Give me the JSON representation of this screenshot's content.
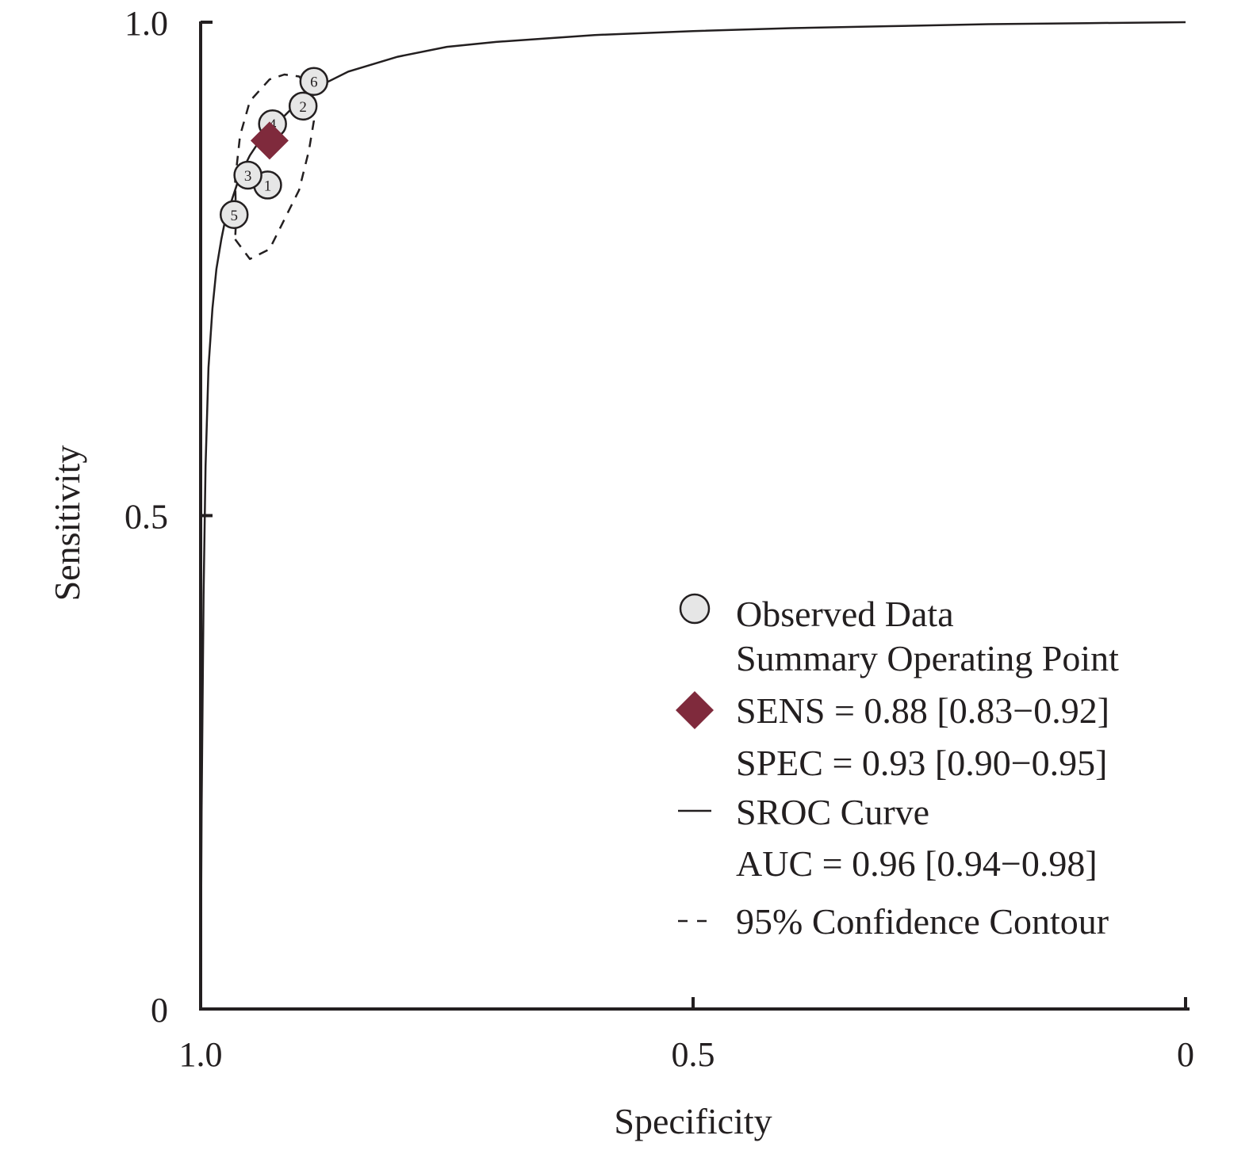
{
  "chart_data": {
    "type": "scatter",
    "xlabel": "Specificity",
    "ylabel": "Sensitivity",
    "xlim": [
      1.0,
      0
    ],
    "ylim": [
      0,
      1.0
    ],
    "x_ticks": [
      "1.0",
      "0.5",
      "0"
    ],
    "y_ticks": [
      "0",
      "0.5",
      "1.0"
    ],
    "grid": false,
    "legend_position": "bottom-right",
    "observed_data": [
      {
        "study": "1",
        "specificity": 0.932,
        "sensitivity": 0.835
      },
      {
        "study": "2",
        "specificity": 0.896,
        "sensitivity": 0.915
      },
      {
        "study": "3",
        "specificity": 0.952,
        "sensitivity": 0.845
      },
      {
        "study": "4",
        "specificity": 0.927,
        "sensitivity": 0.897
      },
      {
        "study": "5",
        "specificity": 0.966,
        "sensitivity": 0.805
      },
      {
        "study": "6",
        "specificity": 0.885,
        "sensitivity": 0.94
      }
    ],
    "summary_point": {
      "specificity": 0.93,
      "sensitivity": 0.88
    },
    "sroc_curve": {
      "specificity": [
        1.0,
        0.999,
        0.997,
        0.995,
        0.992,
        0.988,
        0.984,
        0.979,
        0.975,
        0.97,
        0.965,
        0.96,
        0.955,
        0.95,
        0.94,
        0.93,
        0.92,
        0.91,
        0.9,
        0.88,
        0.85,
        0.8,
        0.75,
        0.7,
        0.6,
        0.5,
        0.4,
        0.3,
        0.2,
        0.1,
        0.0
      ],
      "sensitivity": [
        0.0,
        0.2,
        0.42,
        0.55,
        0.65,
        0.71,
        0.75,
        0.78,
        0.8,
        0.815,
        0.83,
        0.845,
        0.855,
        0.865,
        0.88,
        0.89,
        0.9,
        0.91,
        0.92,
        0.935,
        0.95,
        0.965,
        0.975,
        0.98,
        0.987,
        0.991,
        0.994,
        0.996,
        0.998,
        0.999,
        1.0
      ]
    },
    "confidence_contour": {
      "specificity": [
        0.965,
        0.95,
        0.93,
        0.9,
        0.89,
        0.885,
        0.887,
        0.9,
        0.915,
        0.93,
        0.95,
        0.96,
        0.965,
        0.964
      ],
      "sensitivity": [
        0.78,
        0.76,
        0.77,
        0.83,
        0.87,
        0.9,
        0.93,
        0.945,
        0.947,
        0.942,
        0.92,
        0.885,
        0.84,
        0.8
      ]
    }
  },
  "legend": {
    "observed_label": "Observed Data",
    "summary_label": "Summary Operating Point",
    "sens_text": "SENS = 0.88 [0.83−0.92]",
    "spec_text": "SPEC = 0.93 [0.90−0.95]",
    "sroc_label": "SROC Curve",
    "auc_text": "AUC = 0.96 [0.94−0.98]",
    "contour_label": "95% Confidence Contour"
  },
  "colors": {
    "axis": "#231f20",
    "point_fill": "#e6e6e6",
    "summary_fill": "#7f2a3c"
  }
}
